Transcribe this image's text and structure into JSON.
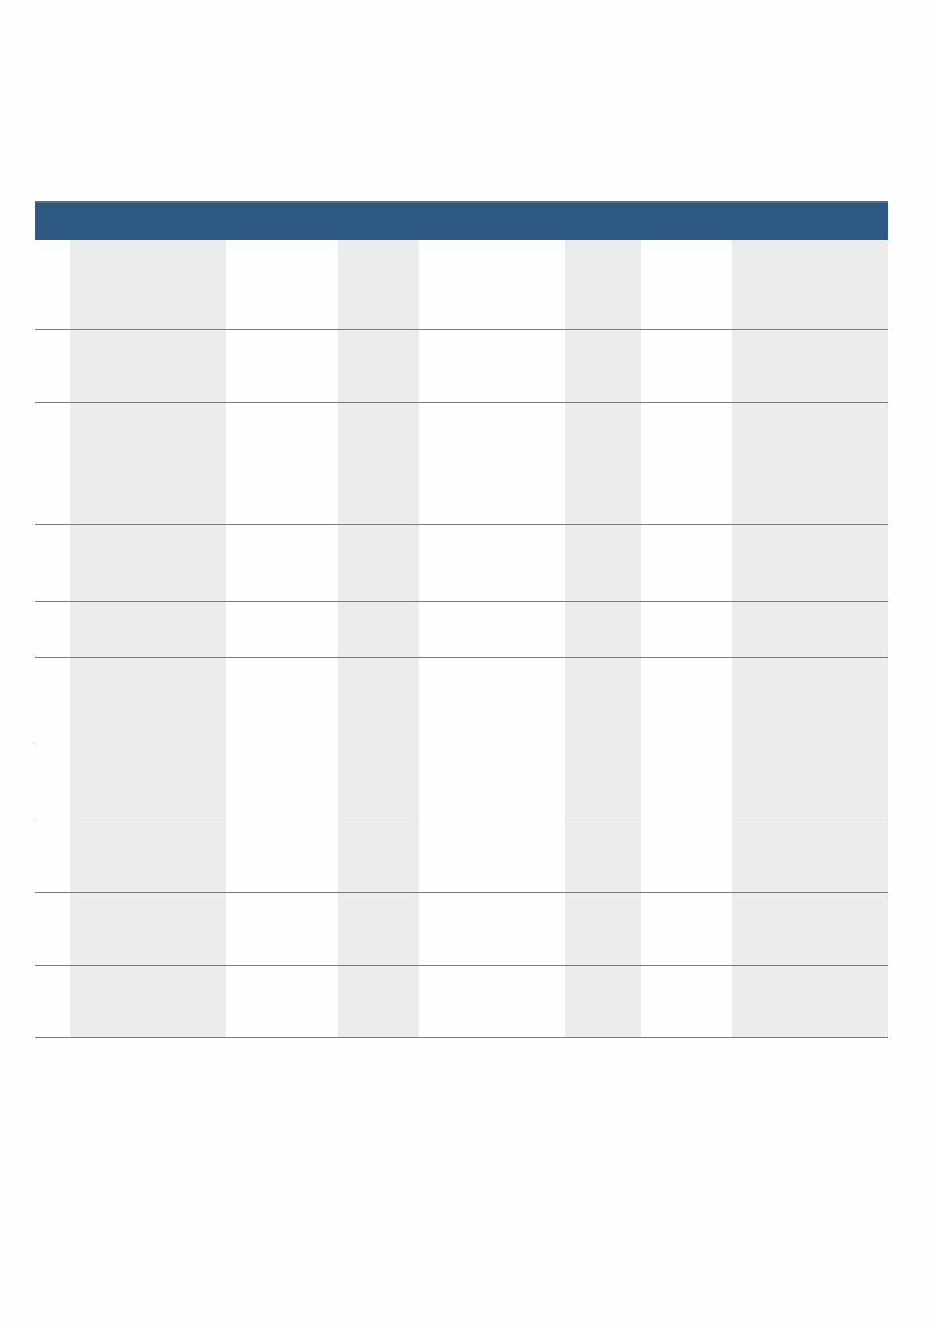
{
  "colors": {
    "header": "#2f5985",
    "shaded_column": "#ececec",
    "plain_column": "#fefefe",
    "row_rule": "#7a7a7a"
  },
  "table": {
    "column_count": 8,
    "row_count": 10,
    "shaded_columns": [
      1,
      3,
      5,
      7
    ]
  }
}
